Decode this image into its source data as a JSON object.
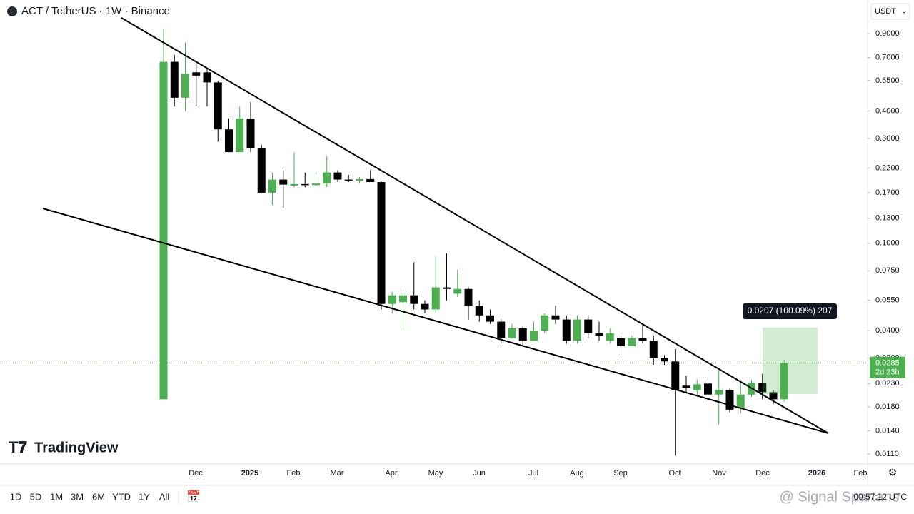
{
  "chart_data": {
    "type": "candlestick",
    "title": "ACT / TetherUS · 1W · Binance",
    "currency": "USDT",
    "log_scale": true,
    "up_color": "#4caf50",
    "down_color": "#000000",
    "ylim": [
      0.0099,
      1.28
    ],
    "yticks": [
      {
        "value": 0.9,
        "label": "0.9000"
      },
      {
        "value": 0.7,
        "label": "0.7000"
      },
      {
        "value": 0.55,
        "label": "0.5500"
      },
      {
        "value": 0.4,
        "label": "0.4000"
      },
      {
        "value": 0.3,
        "label": "0.3000"
      },
      {
        "value": 0.22,
        "label": "0.2200"
      },
      {
        "value": 0.17,
        "label": "0.1700"
      },
      {
        "value": 0.13,
        "label": "0.1300"
      },
      {
        "value": 0.1,
        "label": "0.1000"
      },
      {
        "value": 0.075,
        "label": "0.0750"
      },
      {
        "value": 0.055,
        "label": "0.0550"
      },
      {
        "value": 0.04,
        "label": "0.0400"
      },
      {
        "value": 0.03,
        "label": "0.0300"
      },
      {
        "value": 0.023,
        "label": "0.0230"
      },
      {
        "value": 0.018,
        "label": "0.0180"
      },
      {
        "value": 0.014,
        "label": "0.0140"
      },
      {
        "value": 0.011,
        "label": "0.0110"
      }
    ],
    "xtick_labels": [
      "Dec",
      "2025",
      "Feb",
      "Mar",
      "Apr",
      "May",
      "Jun",
      "Jul",
      "Aug",
      "Sep",
      "Oct",
      "Nov",
      "Dec",
      "2026",
      "Feb"
    ],
    "open": [
      0.0195,
      0.67,
      0.46,
      0.6,
      0.6,
      0.54,
      0.33,
      0.26,
      0.37,
      0.27,
      0.17,
      0.195,
      0.183,
      0.186,
      0.184,
      0.187,
      0.21,
      0.195,
      0.193,
      0.196,
      0.19,
      0.053,
      0.054,
      0.058,
      0.053,
      0.05,
      0.063,
      0.059,
      0.062,
      0.052,
      0.047,
      0.044,
      0.037,
      0.041,
      0.036,
      0.04,
      0.047,
      0.045,
      0.036,
      0.045,
      0.039,
      0.036,
      0.037,
      0.034,
      0.037,
      0.036,
      0.03,
      0.029,
      0.0225,
      0.0215,
      0.023,
      0.0205,
      0.0215,
      0.0178,
      0.0205,
      0.0232,
      0.021,
      0.0195
    ],
    "high": [
      0.95,
      0.72,
      0.82,
      0.66,
      0.62,
      0.55,
      0.37,
      0.42,
      0.44,
      0.28,
      0.21,
      0.215,
      0.26,
      0.21,
      0.21,
      0.25,
      0.215,
      0.205,
      0.2,
      0.215,
      0.192,
      0.06,
      0.062,
      0.082,
      0.055,
      0.087,
      0.09,
      0.076,
      0.063,
      0.055,
      0.05,
      0.045,
      0.043,
      0.042,
      0.044,
      0.048,
      0.052,
      0.047,
      0.047,
      0.047,
      0.044,
      0.041,
      0.038,
      0.038,
      0.043,
      0.038,
      0.031,
      0.033,
      0.025,
      0.024,
      0.0235,
      0.027,
      0.0218,
      0.024,
      0.024,
      0.0255,
      0.0215,
      0.0295
    ],
    "low": [
      0.0195,
      0.42,
      0.4,
      0.42,
      0.42,
      0.29,
      0.26,
      0.26,
      0.26,
      0.17,
      0.15,
      0.145,
      0.18,
      0.18,
      0.18,
      0.18,
      0.19,
      0.19,
      0.188,
      0.19,
      0.05,
      0.048,
      0.04,
      0.05,
      0.048,
      0.048,
      0.055,
      0.057,
      0.045,
      0.044,
      0.043,
      0.035,
      0.037,
      0.034,
      0.036,
      0.039,
      0.043,
      0.035,
      0.035,
      0.037,
      0.036,
      0.035,
      0.031,
      0.034,
      0.035,
      0.028,
      0.028,
      0.0108,
      0.021,
      0.02,
      0.0185,
      0.015,
      0.017,
      0.0168,
      0.02,
      0.0195,
      0.0185,
      0.019
    ],
    "close": [
      0.67,
      0.46,
      0.59,
      0.58,
      0.54,
      0.33,
      0.26,
      0.37,
      0.27,
      0.17,
      0.195,
      0.185,
      0.186,
      0.184,
      0.187,
      0.21,
      0.195,
      0.193,
      0.196,
      0.19,
      0.053,
      0.058,
      0.058,
      0.053,
      0.05,
      0.063,
      0.062,
      0.062,
      0.052,
      0.047,
      0.044,
      0.037,
      0.041,
      0.036,
      0.04,
      0.047,
      0.045,
      0.036,
      0.045,
      0.039,
      0.038,
      0.039,
      0.034,
      0.037,
      0.036,
      0.03,
      0.029,
      0.0215,
      0.022,
      0.0228,
      0.0205,
      0.0215,
      0.0175,
      0.0205,
      0.0232,
      0.021,
      0.0195,
      0.0285
    ],
    "last_price": 0.0285,
    "countdown": "2d 23h",
    "measure_label": "0.0207 (100.09%) 207",
    "brand": "TradingView",
    "timeframes": [
      "1D",
      "5D",
      "1M",
      "3M",
      "6M",
      "YTD",
      "1Y",
      "All"
    ],
    "clock": "00:57:12 UTC",
    "watermark": "@ Signal Spartans"
  }
}
